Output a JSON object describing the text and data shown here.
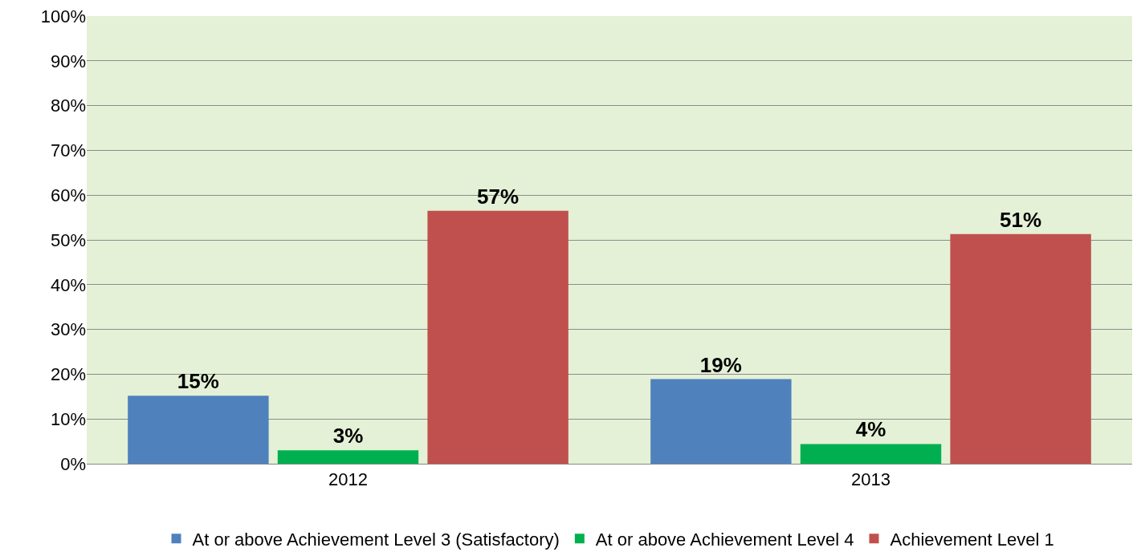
{
  "chart_data": {
    "type": "bar",
    "categories": [
      "2012",
      "2013"
    ],
    "series": [
      {
        "name": "At or above Achievement Level 3 (Satisfactory)",
        "color": "#4f81bd",
        "values": [
          15.2,
          18.9
        ],
        "value_labels": [
          "15%",
          "19%"
        ]
      },
      {
        "name": "At or above Achievement Level 4",
        "color": "#00b050",
        "values": [
          3,
          4.4
        ],
        "value_labels": [
          "3%",
          "4%"
        ]
      },
      {
        "name": "Achievement Level 1",
        "color": "#c0504d",
        "values": [
          56.5,
          51.3
        ],
        "value_labels": [
          "57%",
          "51%"
        ]
      }
    ],
    "ylim": [
      0,
      100
    ],
    "yticks": [
      {
        "value": 0,
        "label": "0%"
      },
      {
        "value": 10,
        "label": "10%"
      },
      {
        "value": 20,
        "label": "20%"
      },
      {
        "value": 30,
        "label": "30%"
      },
      {
        "value": 40,
        "label": "40%"
      },
      {
        "value": 50,
        "label": "50%"
      },
      {
        "value": 60,
        "label": "60%"
      },
      {
        "value": 70,
        "label": "70%"
      },
      {
        "value": 80,
        "label": "80%"
      },
      {
        "value": 90,
        "label": "90%"
      },
      {
        "value": 100,
        "label": "100%"
      }
    ],
    "grid": "y",
    "legend": "bottom"
  }
}
